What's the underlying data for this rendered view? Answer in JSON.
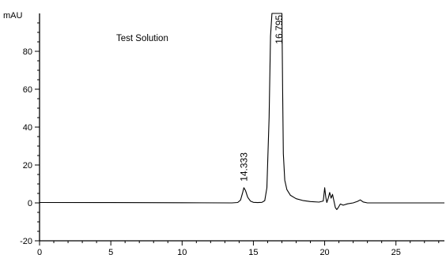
{
  "chart_data": {
    "type": "line",
    "title": "Test Solution",
    "ylabel": "mAU",
    "xlabel": "",
    "xlim": [
      0,
      28.4
    ],
    "ylim": [
      -20,
      100
    ],
    "x_ticks": [
      0,
      5,
      10,
      15,
      20,
      25
    ],
    "y_ticks": [
      -20,
      0,
      20,
      40,
      60,
      80
    ],
    "grid": false,
    "peak_labels": [
      {
        "x": 14.333,
        "text": "14.333"
      },
      {
        "x": 16.795,
        "text": "16.795"
      }
    ],
    "series": [
      {
        "color": "#000000",
        "points": [
          [
            0,
            0.2
          ],
          [
            5,
            0.15
          ],
          [
            10,
            0.1
          ],
          [
            13.5,
            0.0
          ],
          [
            13.9,
            0.2
          ],
          [
            14.1,
            1.5
          ],
          [
            14.25,
            5.5
          ],
          [
            14.333,
            8.0
          ],
          [
            14.45,
            6.5
          ],
          [
            14.6,
            3.0
          ],
          [
            14.8,
            0.9
          ],
          [
            15.0,
            0.3
          ],
          [
            15.3,
            0.15
          ],
          [
            15.6,
            0.3
          ],
          [
            15.8,
            1.2
          ],
          [
            15.95,
            8.0
          ],
          [
            16.1,
            45.0
          ],
          [
            16.2,
            88.0
          ],
          [
            16.3,
            100.0
          ],
          [
            16.795,
            100.0
          ],
          [
            17.0,
            100.0
          ],
          [
            17.05,
            60.0
          ],
          [
            17.1,
            26.0
          ],
          [
            17.2,
            12.0
          ],
          [
            17.35,
            7.0
          ],
          [
            17.6,
            4.0
          ],
          [
            18.0,
            2.2
          ],
          [
            18.5,
            1.2
          ],
          [
            19.0,
            0.7
          ],
          [
            19.6,
            0.4
          ],
          [
            19.9,
            1.0
          ],
          [
            20.0,
            8.0
          ],
          [
            20.08,
            3.0
          ],
          [
            20.15,
            0.2
          ],
          [
            20.25,
            2.5
          ],
          [
            20.35,
            5.5
          ],
          [
            20.45,
            2.5
          ],
          [
            20.55,
            4.5
          ],
          [
            20.65,
            1.0
          ],
          [
            20.75,
            -2.5
          ],
          [
            20.85,
            -3.5
          ],
          [
            20.95,
            -2.5
          ],
          [
            21.1,
            -0.6
          ],
          [
            21.3,
            -1.2
          ],
          [
            21.6,
            -0.5
          ],
          [
            22.0,
            0.0
          ],
          [
            22.3,
            0.8
          ],
          [
            22.5,
            1.6
          ],
          [
            22.7,
            0.5
          ],
          [
            23.0,
            0.0
          ],
          [
            28.4,
            0.0
          ]
        ]
      }
    ]
  }
}
